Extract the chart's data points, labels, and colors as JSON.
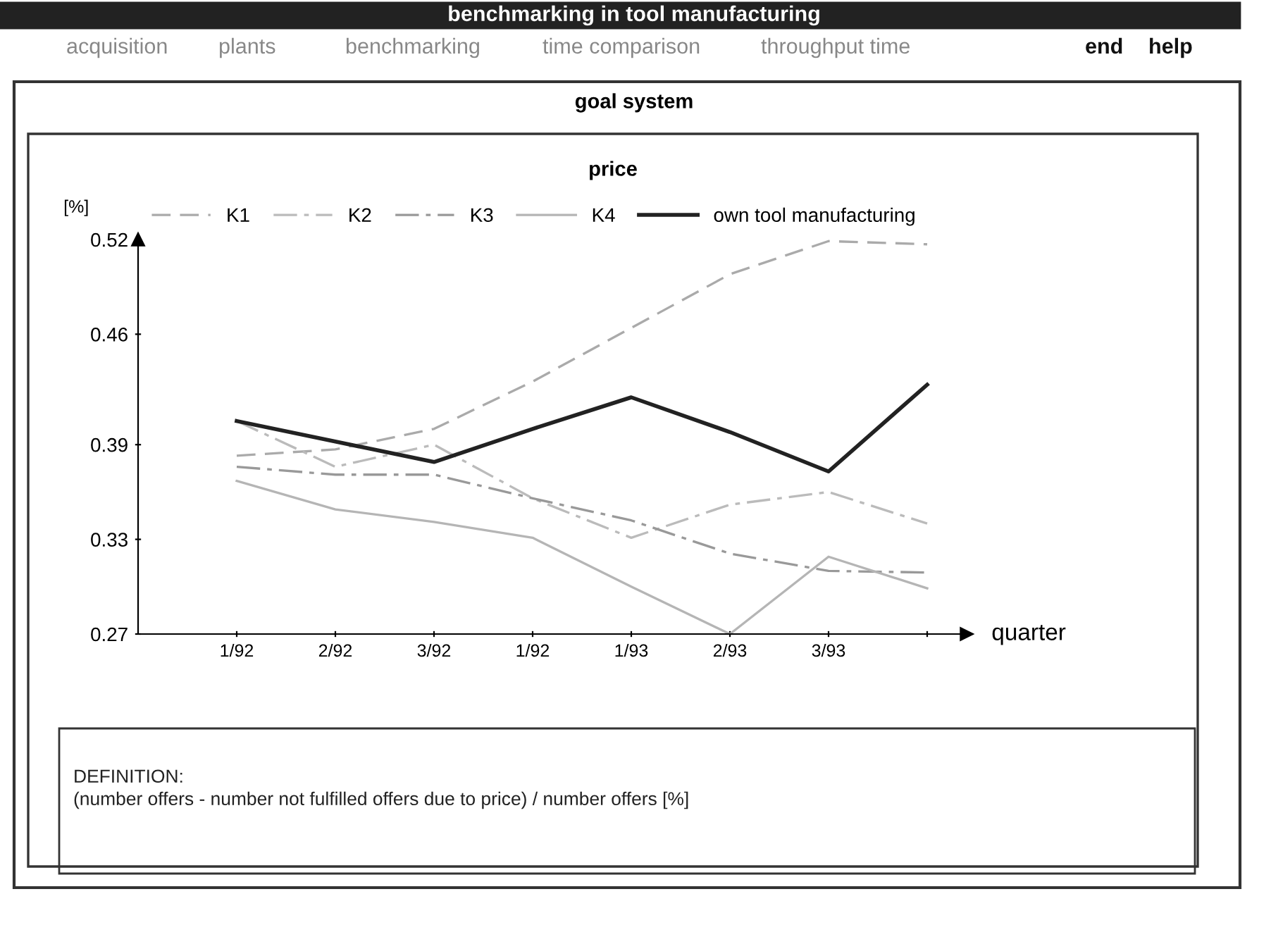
{
  "chart_data": {
    "type": "line",
    "title": "price",
    "subtitle": "goal system",
    "xlabel": "quarter",
    "ylabel": "[%]",
    "annotations": [
      "benchmarking in tool manufacturing",
      "acquisition",
      "plants",
      "benchmarking",
      "time comparison",
      "throughput time",
      "end",
      "help",
      "DEFINITION:",
      "(number offers - number not fulfilled offers due to price) / number offers [%]"
    ],
    "categories": [
      "1/92",
      "2/92",
      "3/92",
      "1/92",
      "1/93",
      "2/93",
      "3/93",
      null
    ],
    "series": [
      {
        "name": "K1",
        "color": "#aaaaaa",
        "line_style": "dashed",
        "values": [
          0.383,
          0.387,
          0.4,
          0.43,
          0.464,
          0.498,
          0.519,
          0.517
        ]
      },
      {
        "name": "K2",
        "color": "#bbbbbb",
        "line_style": "dashdot",
        "values": [
          0.405,
          0.376,
          0.39,
          0.356,
          0.331,
          0.352,
          0.36,
          0.34
        ]
      },
      {
        "name": "K3",
        "color": "#999999",
        "line_style": "dashdot",
        "values": [
          0.376,
          0.371,
          0.371,
          0.356,
          0.342,
          0.321,
          0.31,
          0.309
        ]
      },
      {
        "name": "K4",
        "color": "#b5b5b5",
        "line_style": "solid",
        "values": [
          0.367,
          0.349,
          0.341,
          0.331,
          0.3,
          0.27,
          0.319,
          0.299
        ]
      },
      {
        "name": "own tool manufacturing",
        "color": "#222222",
        "line_style": "solid",
        "values": [
          0.405,
          0.392,
          0.379,
          0.4,
          0.42,
          0.398,
          0.373,
          0.428
        ]
      }
    ],
    "ylim": [
      0.27,
      0.52
    ],
    "yticks": [
      0.27,
      0.33,
      0.39,
      0.46,
      0.52
    ],
    "legend": "top",
    "grid": false
  }
}
